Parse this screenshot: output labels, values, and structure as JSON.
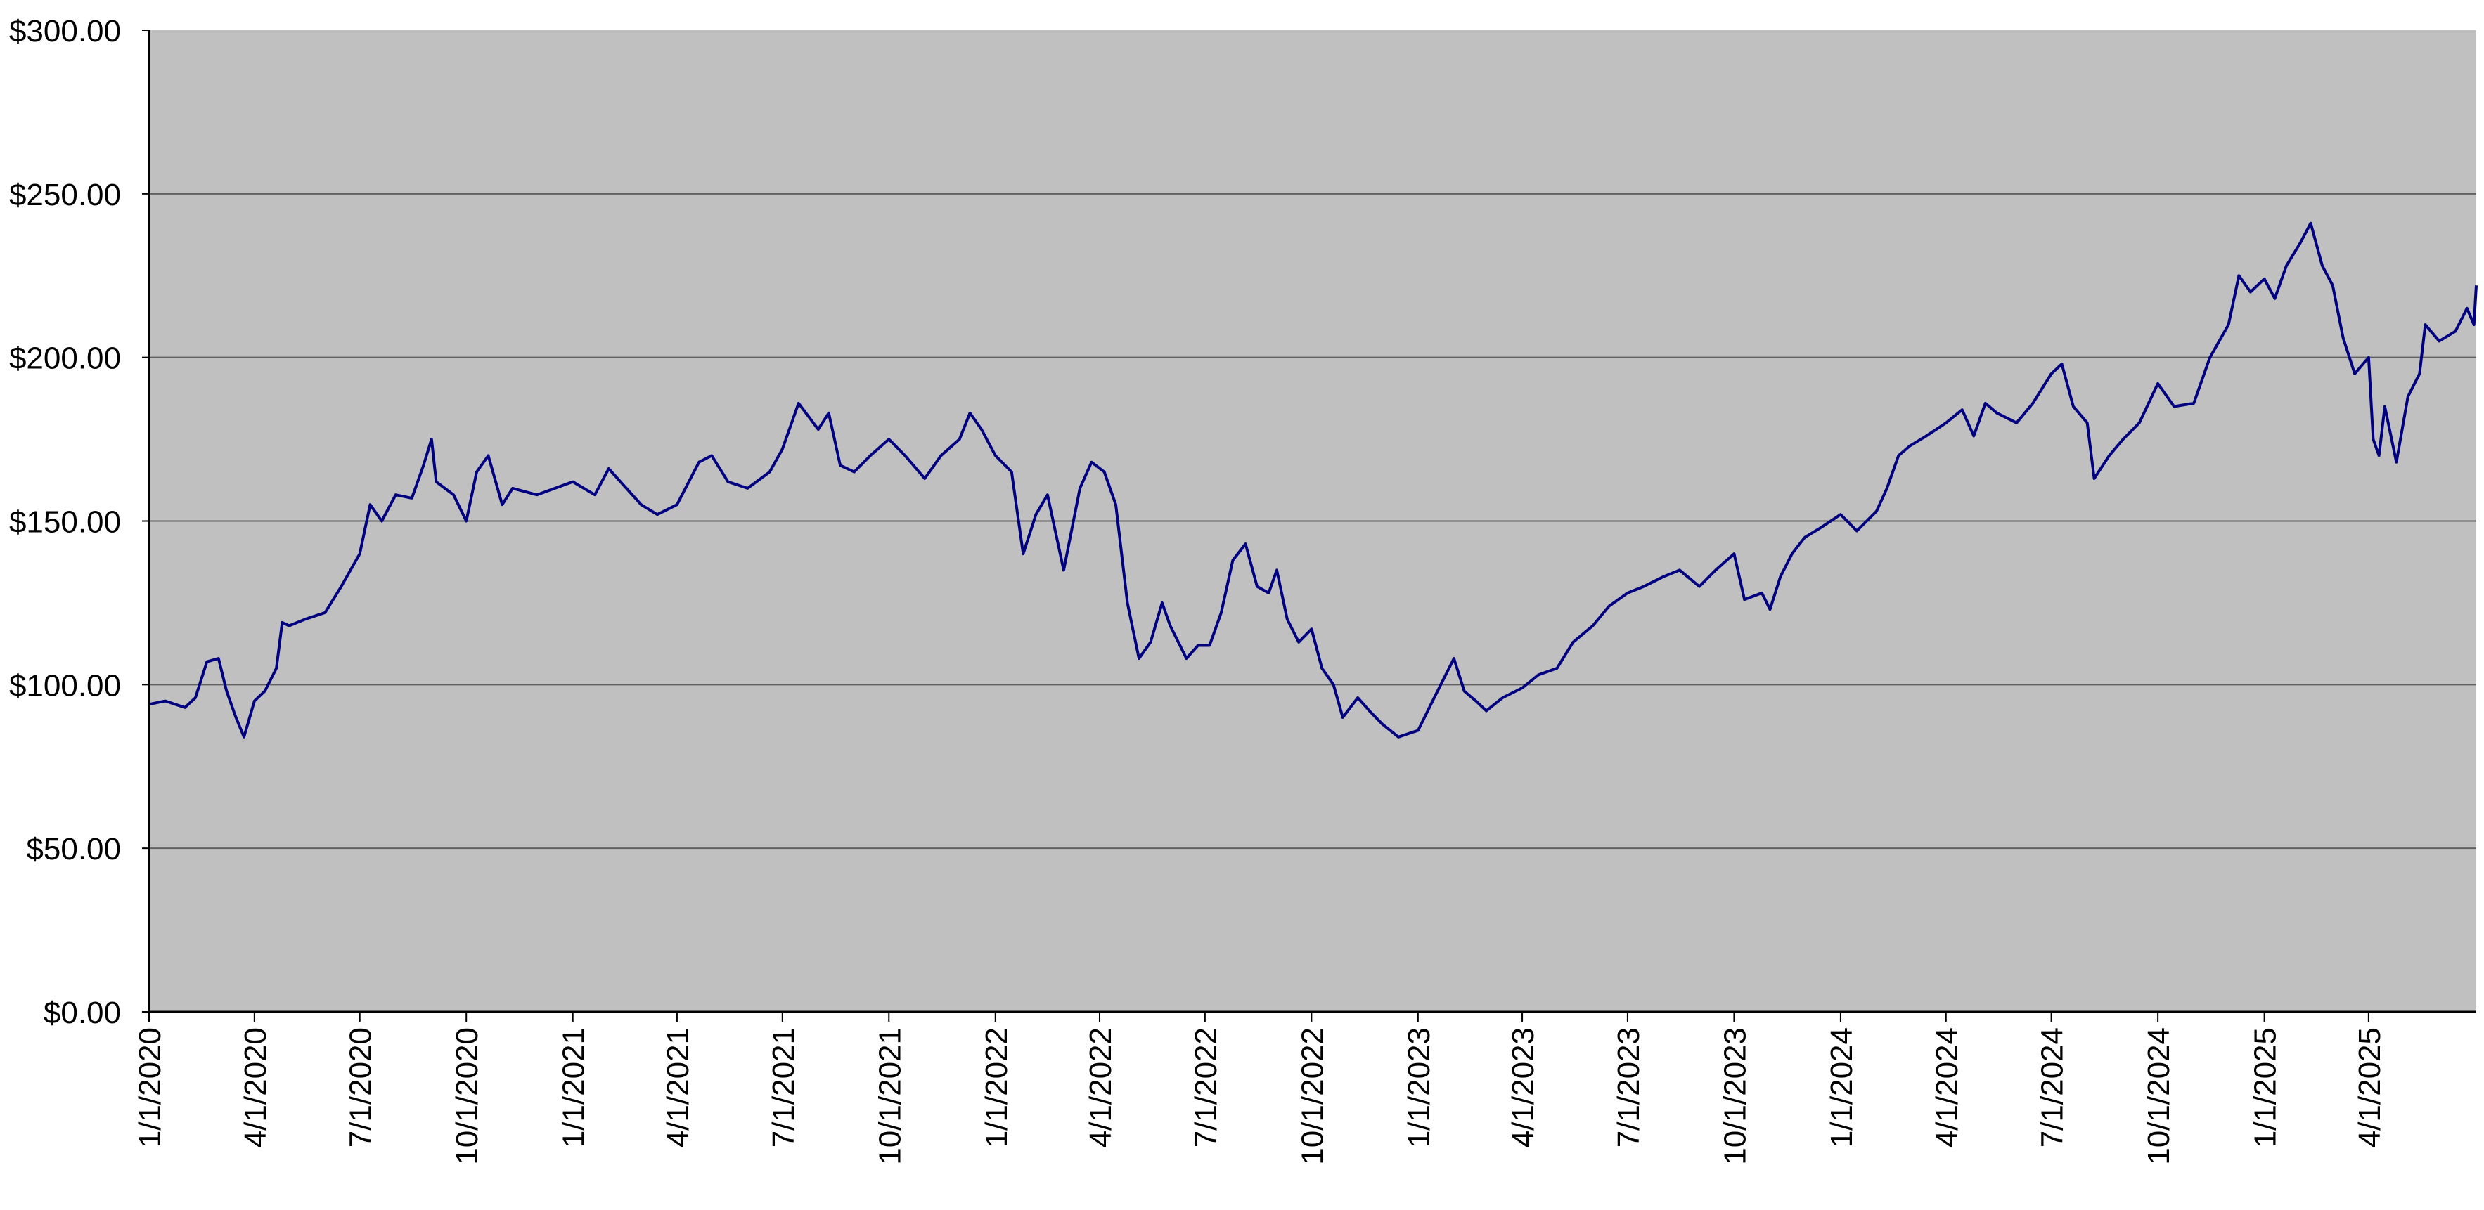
{
  "chart_data": {
    "type": "line",
    "title": "",
    "xlabel": "",
    "ylabel": "",
    "x_tick_labels": [
      "1/1/2020",
      "4/1/2020",
      "7/1/2020",
      "10/1/2020",
      "1/1/2021",
      "4/1/2021",
      "7/1/2021",
      "10/1/2021",
      "1/1/2022",
      "4/1/2022",
      "7/1/2022",
      "10/1/2022",
      "1/1/2023",
      "4/1/2023",
      "7/1/2023",
      "10/1/2023",
      "1/1/2024",
      "4/1/2024",
      "7/1/2024",
      "10/1/2024",
      "1/1/2025",
      "4/1/2025"
    ],
    "x_range": [
      "2020-01-01",
      "2025-07-03"
    ],
    "y_tick_labels": [
      "$0.00",
      "$50.00",
      "$100.00",
      "$150.00",
      "$200.00",
      "$250.00",
      "$300.00"
    ],
    "ylim": [
      0,
      300
    ],
    "grid": "horizontal",
    "legend": "none",
    "colors": {
      "plot_background": "#c0c0c0",
      "line": "#000080",
      "gridline": "#606060",
      "axis": "#000000"
    },
    "series": [
      {
        "values": [
          [
            "2020-01-01",
            94
          ],
          [
            "2020-01-15",
            95
          ],
          [
            "2020-02-01",
            93
          ],
          [
            "2020-02-10",
            96
          ],
          [
            "2020-02-20",
            107
          ],
          [
            "2020-03-01",
            108
          ],
          [
            "2020-03-08",
            98
          ],
          [
            "2020-03-16",
            90
          ],
          [
            "2020-03-23",
            84
          ],
          [
            "2020-04-01",
            95
          ],
          [
            "2020-04-10",
            98
          ],
          [
            "2020-04-20",
            105
          ],
          [
            "2020-04-25",
            119
          ],
          [
            "2020-05-01",
            118
          ],
          [
            "2020-05-15",
            120
          ],
          [
            "2020-06-01",
            122
          ],
          [
            "2020-06-15",
            130
          ],
          [
            "2020-07-01",
            140
          ],
          [
            "2020-07-10",
            155
          ],
          [
            "2020-07-20",
            150
          ],
          [
            "2020-08-01",
            158
          ],
          [
            "2020-08-15",
            157
          ],
          [
            "2020-08-25",
            167
          ],
          [
            "2020-09-01",
            175
          ],
          [
            "2020-09-05",
            162
          ],
          [
            "2020-09-20",
            158
          ],
          [
            "2020-10-01",
            150
          ],
          [
            "2020-10-10",
            165
          ],
          [
            "2020-10-20",
            170
          ],
          [
            "2020-11-01",
            155
          ],
          [
            "2020-11-10",
            160
          ],
          [
            "2020-12-01",
            158
          ],
          [
            "2021-01-01",
            162
          ],
          [
            "2021-01-20",
            158
          ],
          [
            "2021-02-01",
            166
          ],
          [
            "2021-03-01",
            155
          ],
          [
            "2021-03-15",
            152
          ],
          [
            "2021-04-01",
            155
          ],
          [
            "2021-04-20",
            168
          ],
          [
            "2021-05-01",
            170
          ],
          [
            "2021-05-15",
            162
          ],
          [
            "2021-06-01",
            160
          ],
          [
            "2021-06-20",
            165
          ],
          [
            "2021-07-01",
            172
          ],
          [
            "2021-07-15",
            186
          ],
          [
            "2021-08-01",
            178
          ],
          [
            "2021-08-10",
            183
          ],
          [
            "2021-08-20",
            167
          ],
          [
            "2021-09-01",
            165
          ],
          [
            "2021-09-15",
            170
          ],
          [
            "2021-10-01",
            175
          ],
          [
            "2021-10-15",
            170
          ],
          [
            "2021-11-01",
            163
          ],
          [
            "2021-11-15",
            170
          ],
          [
            "2021-12-01",
            175
          ],
          [
            "2021-12-10",
            183
          ],
          [
            "2021-12-20",
            178
          ],
          [
            "2022-01-01",
            170
          ],
          [
            "2022-01-15",
            165
          ],
          [
            "2022-01-25",
            140
          ],
          [
            "2022-02-05",
            152
          ],
          [
            "2022-02-15",
            158
          ],
          [
            "2022-03-01",
            135
          ],
          [
            "2022-03-15",
            160
          ],
          [
            "2022-03-25",
            168
          ],
          [
            "2022-04-05",
            165
          ],
          [
            "2022-04-15",
            155
          ],
          [
            "2022-04-25",
            125
          ],
          [
            "2022-05-05",
            108
          ],
          [
            "2022-05-15",
            113
          ],
          [
            "2022-05-25",
            125
          ],
          [
            "2022-06-01",
            118
          ],
          [
            "2022-06-15",
            108
          ],
          [
            "2022-06-25",
            112
          ],
          [
            "2022-07-05",
            112
          ],
          [
            "2022-07-15",
            122
          ],
          [
            "2022-07-25",
            138
          ],
          [
            "2022-08-05",
            143
          ],
          [
            "2022-08-15",
            130
          ],
          [
            "2022-08-25",
            128
          ],
          [
            "2022-09-01",
            135
          ],
          [
            "2022-09-10",
            120
          ],
          [
            "2022-09-20",
            113
          ],
          [
            "2022-10-01",
            117
          ],
          [
            "2022-10-10",
            105
          ],
          [
            "2022-10-20",
            100
          ],
          [
            "2022-10-28",
            90
          ],
          [
            "2022-11-10",
            96
          ],
          [
            "2022-11-20",
            92
          ],
          [
            "2022-12-01",
            88
          ],
          [
            "2022-12-15",
            84
          ],
          [
            "2023-01-01",
            86
          ],
          [
            "2023-01-15",
            96
          ],
          [
            "2023-02-01",
            108
          ],
          [
            "2023-02-10",
            98
          ],
          [
            "2023-02-20",
            95
          ],
          [
            "2023-03-01",
            92
          ],
          [
            "2023-03-15",
            96
          ],
          [
            "2023-04-01",
            99
          ],
          [
            "2023-04-15",
            103
          ],
          [
            "2023-05-01",
            105
          ],
          [
            "2023-05-15",
            113
          ],
          [
            "2023-06-01",
            118
          ],
          [
            "2023-06-15",
            124
          ],
          [
            "2023-07-01",
            128
          ],
          [
            "2023-07-15",
            130
          ],
          [
            "2023-08-01",
            133
          ],
          [
            "2023-08-15",
            135
          ],
          [
            "2023-09-01",
            130
          ],
          [
            "2023-09-15",
            135
          ],
          [
            "2023-10-01",
            140
          ],
          [
            "2023-10-10",
            126
          ],
          [
            "2023-10-25",
            128
          ],
          [
            "2023-11-01",
            123
          ],
          [
            "2023-11-10",
            133
          ],
          [
            "2023-11-20",
            140
          ],
          [
            "2023-12-01",
            145
          ],
          [
            "2023-12-15",
            148
          ],
          [
            "2024-01-01",
            152
          ],
          [
            "2024-01-15",
            147
          ],
          [
            "2024-02-01",
            153
          ],
          [
            "2024-02-10",
            160
          ],
          [
            "2024-02-20",
            170
          ],
          [
            "2024-03-01",
            173
          ],
          [
            "2024-03-15",
            176
          ],
          [
            "2024-04-01",
            180
          ],
          [
            "2024-04-15",
            184
          ],
          [
            "2024-04-25",
            176
          ],
          [
            "2024-05-05",
            186
          ],
          [
            "2024-05-15",
            183
          ],
          [
            "2024-06-01",
            180
          ],
          [
            "2024-06-15",
            186
          ],
          [
            "2024-07-01",
            195
          ],
          [
            "2024-07-10",
            198
          ],
          [
            "2024-07-20",
            185
          ],
          [
            "2024-08-01",
            180
          ],
          [
            "2024-08-07",
            163
          ],
          [
            "2024-08-20",
            170
          ],
          [
            "2024-09-01",
            175
          ],
          [
            "2024-09-15",
            180
          ],
          [
            "2024-10-01",
            192
          ],
          [
            "2024-10-15",
            185
          ],
          [
            "2024-11-01",
            186
          ],
          [
            "2024-11-15",
            200
          ],
          [
            "2024-12-01",
            210
          ],
          [
            "2024-12-10",
            225
          ],
          [
            "2024-12-20",
            220
          ],
          [
            "2025-01-01",
            224
          ],
          [
            "2025-01-10",
            218
          ],
          [
            "2025-01-20",
            228
          ],
          [
            "2025-02-01",
            235
          ],
          [
            "2025-02-10",
            241
          ],
          [
            "2025-02-20",
            228
          ],
          [
            "2025-03-01",
            222
          ],
          [
            "2025-03-10",
            206
          ],
          [
            "2025-03-20",
            195
          ],
          [
            "2025-04-01",
            200
          ],
          [
            "2025-04-05",
            175
          ],
          [
            "2025-04-10",
            170
          ],
          [
            "2025-04-15",
            185
          ],
          [
            "2025-04-25",
            168
          ],
          [
            "2025-05-05",
            188
          ],
          [
            "2025-05-15",
            195
          ],
          [
            "2025-05-20",
            210
          ],
          [
            "2025-06-01",
            205
          ],
          [
            "2025-06-15",
            208
          ],
          [
            "2025-06-25",
            215
          ],
          [
            "2025-07-01",
            210
          ],
          [
            "2025-07-03",
            222
          ]
        ]
      }
    ]
  }
}
